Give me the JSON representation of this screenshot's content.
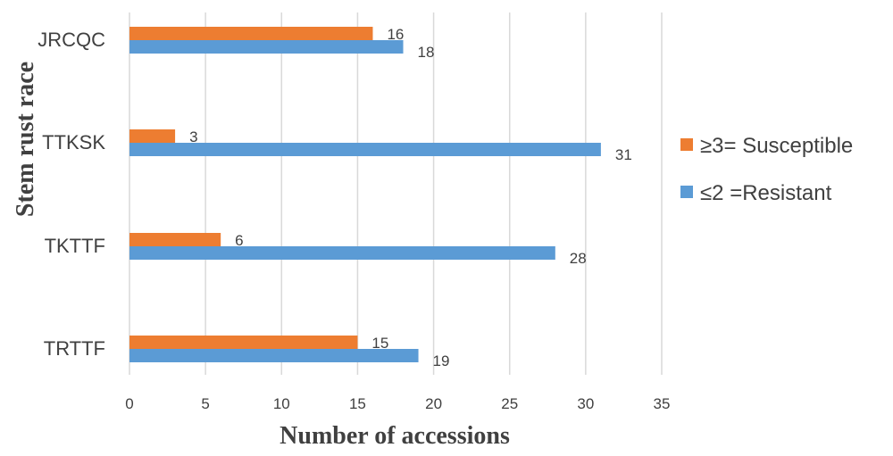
{
  "chart_data": {
    "type": "bar",
    "orientation": "horizontal",
    "categories": [
      "JRCQC",
      "TTKSK",
      "TKTTF",
      "TRTTF"
    ],
    "series": [
      {
        "name": "≥3= Susceptible",
        "values": [
          16,
          3,
          6,
          15
        ],
        "color": "#ED7D31"
      },
      {
        "name": "≤2 =Resistant",
        "values": [
          18,
          31,
          28,
          19
        ],
        "color": "#5B9BD5"
      }
    ],
    "xlabel": "Number of accessions",
    "ylabel": "Stem rust race",
    "xlim": [
      0,
      35
    ],
    "xticks": [
      0,
      5,
      10,
      15,
      20,
      25,
      30,
      35
    ],
    "grid": true,
    "legend_position": "right",
    "gridline_color": "#D9D9D9"
  }
}
